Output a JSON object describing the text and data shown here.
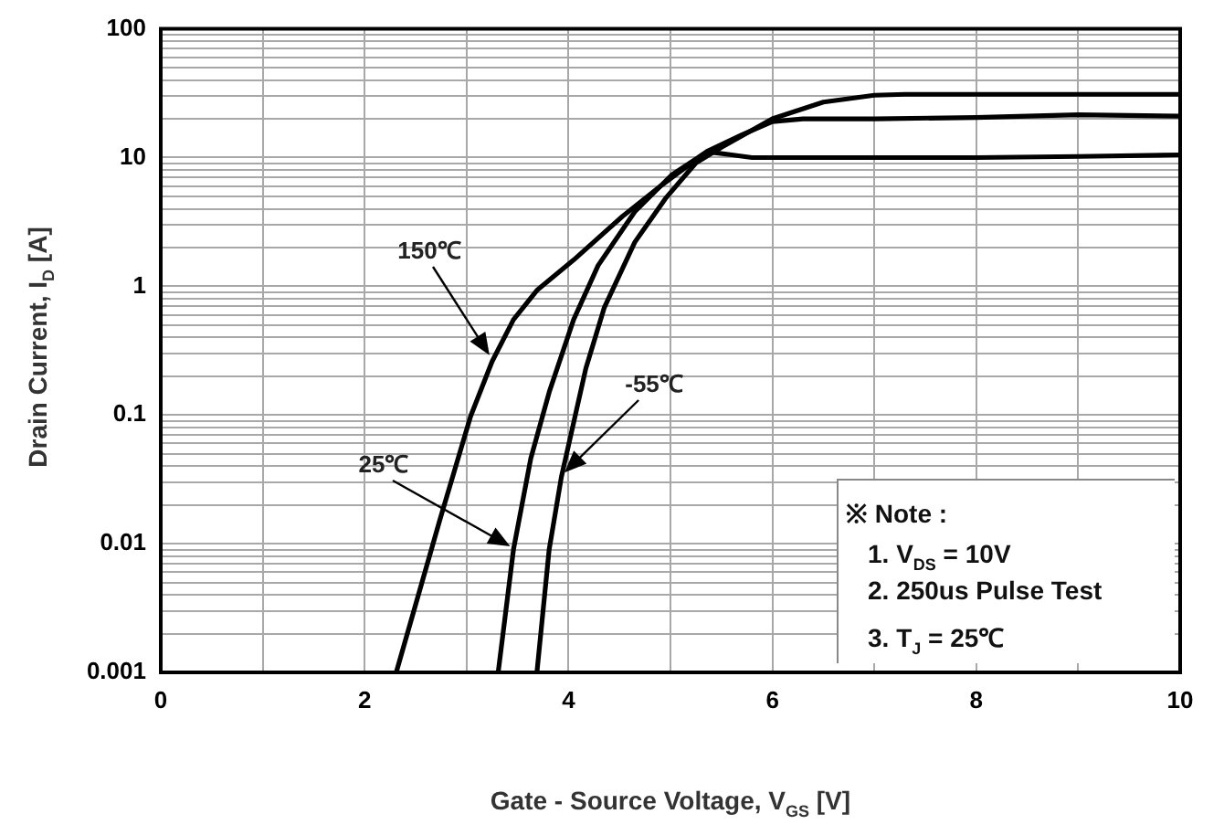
{
  "chart_data": {
    "type": "line",
    "xlabel": "Gate - Source Voltage, V$_{GS}$ [V]",
    "ylabel": "Drain Current, I$_{D}$ [A]",
    "log": "y",
    "xlim": [
      0,
      10
    ],
    "ylim": [
      0.001,
      100
    ],
    "xticks": [
      0,
      {
        "value": 1,
        "label": null
      },
      2,
      {
        "value": 3,
        "label": null
      },
      4,
      {
        "value": 5,
        "label": null
      },
      6,
      {
        "value": 7,
        "label": null
      },
      8,
      {
        "value": 9,
        "label": null
      },
      10
    ],
    "yticks": [
      0.001,
      {
        "value": 0.002,
        "label": null
      },
      {
        "value": 0.003,
        "label": null
      },
      {
        "value": 0.004,
        "label": null
      },
      {
        "value": 0.005,
        "label": null
      },
      {
        "value": 0.006,
        "label": null
      },
      {
        "value": 0.007,
        "label": null
      },
      {
        "value": 0.008,
        "label": null
      },
      {
        "value": 0.009,
        "label": null
      },
      0.01,
      {
        "value": 0.02,
        "label": null
      },
      {
        "value": 0.03,
        "label": null
      },
      {
        "value": 0.04,
        "label": null
      },
      {
        "value": 0.05,
        "label": null
      },
      {
        "value": 0.06,
        "label": null
      },
      {
        "value": 0.07,
        "label": null
      },
      {
        "value": 0.08,
        "label": null
      },
      {
        "value": 0.09,
        "label": null
      },
      0.1,
      {
        "value": 0.2,
        "label": null
      },
      {
        "value": 0.3,
        "label": null
      },
      {
        "value": 0.4,
        "label": null
      },
      {
        "value": 0.5,
        "label": null
      },
      {
        "value": 0.6,
        "label": null
      },
      {
        "value": 0.7,
        "label": null
      },
      {
        "value": 0.8,
        "label": null
      },
      {
        "value": 0.9,
        "label": null
      },
      1,
      {
        "value": 2,
        "label": null
      },
      {
        "value": 3,
        "label": null
      },
      {
        "value": 4,
        "label": null
      },
      {
        "value": 5,
        "label": null
      },
      {
        "value": 6,
        "label": null
      },
      {
        "value": 7,
        "label": null
      },
      {
        "value": 8,
        "label": null
      },
      {
        "value": 9,
        "label": null
      },
      10,
      {
        "value": 20,
        "label": null
      },
      {
        "value": 30,
        "label": null
      },
      {
        "value": 40,
        "label": null
      },
      {
        "value": 50,
        "label": null
      },
      {
        "value": 60,
        "label": null
      },
      {
        "value": 70,
        "label": null
      },
      {
        "value": 80,
        "label": null
      },
      {
        "value": 90,
        "label": null
      },
      100
    ],
    "grid": true,
    "legend": false,
    "marker": "none",
    "line_style": "solid",
    "series": [
      {
        "color": "#000000",
        "x": [
          2.31,
          2.74,
          3.04,
          3.25,
          3.46,
          3.69,
          4.05,
          4.53,
          4.89,
          5.25,
          5.4,
          5.6,
          5.8,
          6,
          7,
          8,
          9,
          10
        ],
        "values": [
          0.001,
          0.0155,
          0.098,
          0.26,
          0.55,
          0.93,
          1.6,
          3.5,
          5.9,
          9.6,
          11,
          10.5,
          10,
          10,
          10,
          10,
          10.2,
          10.5
        ]
      },
      {
        "color": "#000000",
        "x": [
          3.31,
          3.46,
          3.63,
          3.81,
          4.05,
          4.29,
          4.65,
          5.01,
          5.37,
          5.7,
          6,
          6.3,
          7,
          8,
          9,
          10
        ],
        "values": [
          0.001,
          0.009,
          0.046,
          0.15,
          0.55,
          1.45,
          3.8,
          7.3,
          11.3,
          15,
          19,
          20,
          20,
          20.5,
          21.5,
          21
        ]
      },
      {
        "color": "#000000",
        "x": [
          3.69,
          3.81,
          3.93,
          4.05,
          4.17,
          4.35,
          4.65,
          4.95,
          5.25,
          5.5,
          6,
          6.5,
          7,
          7.3,
          8,
          9,
          10
        ],
        "values": [
          0.001,
          0.009,
          0.033,
          0.087,
          0.23,
          0.68,
          2.2,
          4.8,
          9.1,
          12,
          20,
          27,
          30.5,
          31,
          31,
          31,
          31
        ]
      }
    ],
    "annotations": [
      "150℃",
      "25℃",
      "-55℃",
      "※ Note :",
      "1. V$_{DS}$ = 10V",
      "2. 250us Pulse Test",
      "3. T$_{J}$ = 25℃"
    ]
  }
}
